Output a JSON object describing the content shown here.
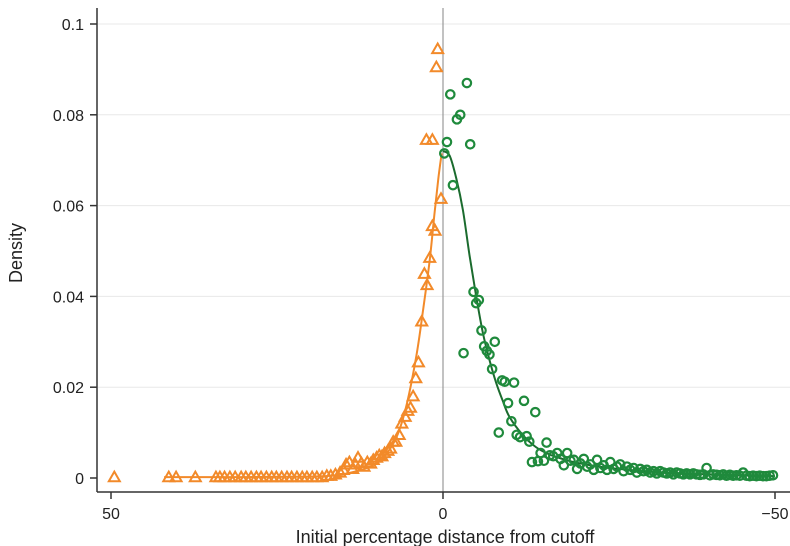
{
  "chart_data": {
    "type": "scatter",
    "title": "",
    "xlabel": "Initial percentage distance from cutoff",
    "ylabel": "Density",
    "xlim": [
      50,
      -50
    ],
    "ylim": [
      0,
      0.1
    ],
    "x_reversed": true,
    "x_ticks": [
      50,
      0,
      -50
    ],
    "x_tick_labels": [
      "50",
      "0",
      "−50"
    ],
    "y_ticks": [
      0,
      0.02,
      0.04,
      0.06,
      0.08,
      0.1
    ],
    "y_tick_labels": [
      "0",
      "0.02",
      "0.04",
      "0.06",
      "0.08",
      "0.1"
    ],
    "grid": "horizontal",
    "cutoff_line_x": 0,
    "legend": "none",
    "colors": {
      "left": "#f28a2a",
      "right": "#1f8a3c",
      "right_fit": "#1b6b2e",
      "cutoff": "#999999",
      "grid": "#e8e8e8"
    },
    "series": [
      {
        "marker": "triangle",
        "color": "#f28a2a",
        "points": [
          [
            49.5,
            0.0002
          ],
          [
            41.3,
            0.0002
          ],
          [
            40.2,
            0.0002
          ],
          [
            37.3,
            0.0002
          ],
          [
            34.2,
            0.0002
          ],
          [
            33.6,
            0.0002
          ],
          [
            32.9,
            0.0002
          ],
          [
            32.1,
            0.0002
          ],
          [
            31.3,
            0.0002
          ],
          [
            30.4,
            0.0002
          ],
          [
            29.7,
            0.0002
          ],
          [
            28.9,
            0.0002
          ],
          [
            28.1,
            0.0002
          ],
          [
            27.4,
            0.0002
          ],
          [
            26.6,
            0.0002
          ],
          [
            25.8,
            0.0002
          ],
          [
            25.1,
            0.0002
          ],
          [
            24.3,
            0.0002
          ],
          [
            23.5,
            0.0002
          ],
          [
            22.8,
            0.0002
          ],
          [
            22.0,
            0.0002
          ],
          [
            21.2,
            0.0002
          ],
          [
            20.5,
            0.0002
          ],
          [
            19.7,
            0.0002
          ],
          [
            19.0,
            0.0002
          ],
          [
            18.2,
            0.0002
          ],
          [
            17.5,
            0.0005
          ],
          [
            16.9,
            0.0005
          ],
          [
            16.2,
            0.0008
          ],
          [
            15.5,
            0.0012
          ],
          [
            15.0,
            0.0018
          ],
          [
            14.6,
            0.003
          ],
          [
            14.1,
            0.0035
          ],
          [
            13.6,
            0.002
          ],
          [
            13.2,
            0.003
          ],
          [
            12.8,
            0.0045
          ],
          [
            12.3,
            0.0033
          ],
          [
            11.9,
            0.0025
          ],
          [
            11.4,
            0.0035
          ],
          [
            10.9,
            0.0032
          ],
          [
            10.5,
            0.004
          ],
          [
            10.0,
            0.0045
          ],
          [
            9.6,
            0.005
          ],
          [
            9.2,
            0.0048
          ],
          [
            8.8,
            0.0055
          ],
          [
            8.3,
            0.006
          ],
          [
            7.9,
            0.0065
          ],
          [
            7.5,
            0.008
          ],
          [
            7.1,
            0.008
          ],
          [
            6.6,
            0.0095
          ],
          [
            6.2,
            0.012
          ],
          [
            5.7,
            0.0135
          ],
          [
            5.3,
            0.0148
          ],
          [
            4.9,
            0.0155
          ],
          [
            4.5,
            0.018
          ],
          [
            4.1,
            0.022
          ],
          [
            3.7,
            0.0255
          ],
          [
            3.2,
            0.0345
          ],
          [
            2.8,
            0.045
          ],
          [
            2.4,
            0.0425
          ],
          [
            2.0,
            0.0485
          ],
          [
            1.6,
            0.0555
          ],
          [
            1.2,
            0.0545
          ],
          [
            2.5,
            0.0745
          ],
          [
            1.6,
            0.0745
          ],
          [
            1.0,
            0.0905
          ],
          [
            0.8,
            0.0945
          ],
          [
            0.3,
            0.0615
          ]
        ]
      },
      {
        "marker": "circle",
        "color": "#1f8a3c",
        "points": [
          [
            -0.2,
            0.0715
          ],
          [
            -0.6,
            0.074
          ],
          [
            -1.1,
            0.0845
          ],
          [
            -1.5,
            0.0645
          ],
          [
            -2.1,
            0.079
          ],
          [
            -2.6,
            0.08
          ],
          [
            -3.1,
            0.0275
          ],
          [
            -3.6,
            0.087
          ],
          [
            -4.1,
            0.0735
          ],
          [
            -4.6,
            0.041
          ],
          [
            -5.0,
            0.0385
          ],
          [
            -5.4,
            0.0392
          ],
          [
            -5.8,
            0.0325
          ],
          [
            -6.2,
            0.029
          ],
          [
            -6.6,
            0.028
          ],
          [
            -7.0,
            0.0272
          ],
          [
            -7.4,
            0.024
          ],
          [
            -7.8,
            0.03
          ],
          [
            -8.4,
            0.01
          ],
          [
            -8.9,
            0.0215
          ],
          [
            -9.3,
            0.0212
          ],
          [
            -9.8,
            0.0165
          ],
          [
            -10.3,
            0.0125
          ],
          [
            -10.7,
            0.021
          ],
          [
            -11.1,
            0.0095
          ],
          [
            -11.6,
            0.009
          ],
          [
            -12.2,
            0.017
          ],
          [
            -12.6,
            0.0092
          ],
          [
            -13.0,
            0.008
          ],
          [
            -13.4,
            0.0035
          ],
          [
            -13.9,
            0.0145
          ],
          [
            -14.3,
            0.0037
          ],
          [
            -14.7,
            0.0055
          ],
          [
            -15.2,
            0.0038
          ],
          [
            -15.6,
            0.0078
          ],
          [
            -16.1,
            0.005
          ],
          [
            -16.6,
            0.0048
          ],
          [
            -17.2,
            0.0055
          ],
          [
            -17.7,
            0.0042
          ],
          [
            -18.2,
            0.0028
          ],
          [
            -18.7,
            0.0055
          ],
          [
            -19.2,
            0.0038
          ],
          [
            -19.7,
            0.004
          ],
          [
            -20.2,
            0.002
          ],
          [
            -20.7,
            0.0032
          ],
          [
            -21.2,
            0.0042
          ],
          [
            -21.7,
            0.0025
          ],
          [
            -22.2,
            0.003
          ],
          [
            -22.7,
            0.0018
          ],
          [
            -23.2,
            0.004
          ],
          [
            -23.7,
            0.0022
          ],
          [
            -24.2,
            0.0028
          ],
          [
            -24.7,
            0.0018
          ],
          [
            -25.2,
            0.0035
          ],
          [
            -25.7,
            0.002
          ],
          [
            -26.2,
            0.0025
          ],
          [
            -26.7,
            0.003
          ],
          [
            -27.2,
            0.0015
          ],
          [
            -27.7,
            0.0025
          ],
          [
            -28.2,
            0.0018
          ],
          [
            -28.7,
            0.0022
          ],
          [
            -29.2,
            0.0012
          ],
          [
            -29.7,
            0.002
          ],
          [
            -30.2,
            0.0015
          ],
          [
            -30.7,
            0.0018
          ],
          [
            -31.2,
            0.0012
          ],
          [
            -31.7,
            0.0015
          ],
          [
            -32.2,
            0.001
          ],
          [
            -32.7,
            0.0015
          ],
          [
            -33.2,
            0.0012
          ],
          [
            -33.7,
            0.001
          ],
          [
            -34.2,
            0.0012
          ],
          [
            -34.7,
            0.0008
          ],
          [
            -35.2,
            0.0012
          ],
          [
            -35.7,
            0.001
          ],
          [
            -36.2,
            0.0008
          ],
          [
            -36.7,
            0.001
          ],
          [
            -37.2,
            0.0008
          ],
          [
            -37.7,
            0.001
          ],
          [
            -38.2,
            0.0008
          ],
          [
            -38.7,
            0.0007
          ],
          [
            -39.2,
            0.0008
          ],
          [
            -39.7,
            0.0022
          ],
          [
            -40.2,
            0.0006
          ],
          [
            -40.7,
            0.0008
          ],
          [
            -41.2,
            0.0007
          ],
          [
            -41.7,
            0.0006
          ],
          [
            -42.2,
            0.0008
          ],
          [
            -42.7,
            0.0005
          ],
          [
            -43.2,
            0.0007
          ],
          [
            -43.7,
            0.0005
          ],
          [
            -44.2,
            0.0006
          ],
          [
            -44.7,
            0.0005
          ],
          [
            -45.2,
            0.0012
          ],
          [
            -45.7,
            0.0005
          ],
          [
            -46.2,
            0.0004
          ],
          [
            -46.7,
            0.0005
          ],
          [
            -47.2,
            0.0004
          ],
          [
            -47.7,
            0.0005
          ],
          [
            -48.2,
            0.0004
          ],
          [
            -48.7,
            0.0004
          ],
          [
            -49.2,
            0.0005
          ],
          [
            -49.7,
            0.0006
          ]
        ]
      }
    ],
    "fits": [
      {
        "color": "#f28a2a",
        "points": [
          [
            42,
            0.0002
          ],
          [
            30,
            0.0002
          ],
          [
            20,
            0.0003
          ],
          [
            16,
            0.0006
          ],
          [
            13,
            0.0015
          ],
          [
            11,
            0.0025
          ],
          [
            9,
            0.0045
          ],
          [
            7,
            0.009
          ],
          [
            5.5,
            0.016
          ],
          [
            4,
            0.027
          ],
          [
            3,
            0.037
          ],
          [
            2,
            0.048
          ],
          [
            1.3,
            0.058
          ],
          [
            0.7,
            0.066
          ],
          [
            0.2,
            0.0715
          ]
        ]
      },
      {
        "color": "#1b6b2e",
        "points": [
          [
            0,
            0.072
          ],
          [
            -1,
            0.071
          ],
          [
            -2,
            0.066
          ],
          [
            -3,
            0.059
          ],
          [
            -4,
            0.049
          ],
          [
            -5,
            0.04
          ],
          [
            -6,
            0.032
          ],
          [
            -7,
            0.026
          ],
          [
            -8,
            0.021
          ],
          [
            -9,
            0.017
          ],
          [
            -10,
            0.0135
          ],
          [
            -12,
            0.0095
          ],
          [
            -14,
            0.0068
          ],
          [
            -16,
            0.0052
          ],
          [
            -18,
            0.0042
          ],
          [
            -20,
            0.0034
          ],
          [
            -24,
            0.0024
          ],
          [
            -28,
            0.0018
          ],
          [
            -32,
            0.0013
          ],
          [
            -36,
            0.001
          ],
          [
            -40,
            0.0008
          ],
          [
            -44,
            0.0006
          ],
          [
            -48,
            0.0005
          ],
          [
            -50,
            0.0004
          ]
        ]
      }
    ]
  }
}
